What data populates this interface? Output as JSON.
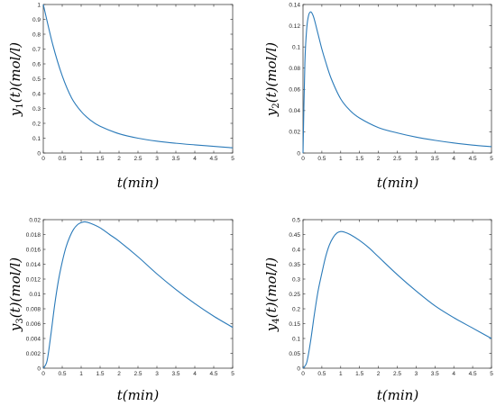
{
  "chart_data": [
    {
      "type": "line",
      "x": [
        0,
        0.25,
        0.5,
        0.75,
        1,
        1.25,
        1.5,
        2,
        2.5,
        3,
        3.5,
        4,
        4.5,
        5
      ],
      "series": [
        {
          "values": [
            1.0,
            0.73,
            0.52,
            0.37,
            0.28,
            0.22,
            0.18,
            0.13,
            0.1,
            0.08,
            0.066,
            0.055,
            0.045,
            0.035
          ]
        }
      ],
      "xlim": [
        0,
        5
      ],
      "ylim": [
        0,
        1
      ],
      "xticks": [
        "0",
        "0.5",
        "1",
        "1.5",
        "2",
        "2.5",
        "3",
        "3.5",
        "4",
        "4.5",
        "5"
      ],
      "yticks": [
        "0",
        "0.1",
        "0.2",
        "0.3",
        "0.4",
        "0.5",
        "0.6",
        "0.7",
        "0.8",
        "0.9",
        "1"
      ],
      "xlabel": "t(min)",
      "ylabel": "y1(t)(mol/l)",
      "xlabel_parts": {
        "main": "t(min)"
      },
      "ylabel_parts": {
        "base": "y",
        "sub": "1",
        "rest": "(t)(mol/l)"
      },
      "color": "#2a7ab9",
      "grid": false,
      "legend": "none"
    },
    {
      "type": "line",
      "x": [
        0,
        0.05,
        0.1,
        0.15,
        0.2,
        0.25,
        0.3,
        0.4,
        0.5,
        0.6,
        0.75,
        1,
        1.25,
        1.5,
        2,
        2.5,
        3,
        3.5,
        4,
        4.5,
        5
      ],
      "series": [
        {
          "values": [
            0,
            0.085,
            0.118,
            0.13,
            0.133,
            0.131,
            0.126,
            0.112,
            0.098,
            0.086,
            0.07,
            0.051,
            0.04,
            0.033,
            0.024,
            0.019,
            0.015,
            0.012,
            0.0095,
            0.0075,
            0.006
          ]
        }
      ],
      "xlim": [
        0,
        5
      ],
      "ylim": [
        0,
        0.14
      ],
      "xticks": [
        "0",
        "0.5",
        "1",
        "1.5",
        "2",
        "2.5",
        "3",
        "3.5",
        "4",
        "4.5",
        "5"
      ],
      "yticks": [
        "0",
        "0.02",
        "0.04",
        "0.06",
        "0.08",
        "0.1",
        "0.12",
        "0.14"
      ],
      "xlabel": "t(min)",
      "ylabel": "y2(t)(mol/l)",
      "xlabel_parts": {
        "main": "t(min)"
      },
      "ylabel_parts": {
        "base": "y",
        "sub": "2",
        "rest": "(t)(mol/l)"
      },
      "color": "#2a7ab9",
      "grid": false,
      "legend": "none"
    },
    {
      "type": "line",
      "x": [
        0,
        0.1,
        0.2,
        0.3,
        0.4,
        0.5,
        0.6,
        0.7,
        0.8,
        0.9,
        1,
        1.1,
        1.25,
        1.5,
        1.75,
        2,
        2.5,
        3,
        3.5,
        4,
        4.5,
        5
      ],
      "series": [
        {
          "values": [
            0,
            0.001,
            0.0045,
            0.0085,
            0.0118,
            0.0143,
            0.0163,
            0.0177,
            0.0187,
            0.0193,
            0.0196,
            0.0197,
            0.0195,
            0.0189,
            0.018,
            0.0171,
            0.015,
            0.0127,
            0.0106,
            0.0087,
            0.007,
            0.0055
          ]
        }
      ],
      "xlim": [
        0,
        5
      ],
      "ylim": [
        0,
        0.02
      ],
      "xticks": [
        "0",
        "0.5",
        "1",
        "1.5",
        "2",
        "2.5",
        "3",
        "3.5",
        "4",
        "4.5",
        "5"
      ],
      "yticks": [
        "0",
        "0.002",
        "0.004",
        "0.006",
        "0.008",
        "0.01",
        "0.012",
        "0.014",
        "0.016",
        "0.018",
        "0.02"
      ],
      "xlabel": "t(min)",
      "ylabel": "y3(t)(mol/l)",
      "xlabel_parts": {
        "main": "t(min)"
      },
      "ylabel_parts": {
        "base": "y",
        "sub": "3",
        "rest": "(t)(mol/l)"
      },
      "color": "#2a7ab9",
      "grid": false,
      "legend": "none"
    },
    {
      "type": "line",
      "x": [
        0,
        0.1,
        0.2,
        0.3,
        0.4,
        0.5,
        0.6,
        0.7,
        0.8,
        0.9,
        1,
        1.1,
        1.25,
        1.5,
        1.75,
        2,
        2.5,
        3,
        3.5,
        4,
        4.5,
        5
      ],
      "series": [
        {
          "values": [
            0,
            0.02,
            0.09,
            0.18,
            0.26,
            0.32,
            0.375,
            0.415,
            0.44,
            0.455,
            0.46,
            0.458,
            0.45,
            0.43,
            0.405,
            0.375,
            0.315,
            0.26,
            0.21,
            0.17,
            0.135,
            0.1
          ]
        }
      ],
      "xlim": [
        0,
        5
      ],
      "ylim": [
        0,
        0.5
      ],
      "xticks": [
        "0",
        "0.5",
        "1",
        "1.5",
        "2",
        "2.5",
        "3",
        "3.5",
        "4",
        "4.5",
        "5"
      ],
      "yticks": [
        "0",
        "0.05",
        "0.1",
        "0.15",
        "0.2",
        "0.25",
        "0.3",
        "0.35",
        "0.4",
        "0.45",
        "0.5"
      ],
      "xlabel": "t(min)",
      "ylabel": "y4(t)(mol/l)",
      "xlabel_parts": {
        "main": "t(min)"
      },
      "ylabel_parts": {
        "base": "y",
        "sub": "4",
        "rest": "(t)(mol/l)"
      },
      "color": "#2a7ab9",
      "grid": false,
      "legend": "none"
    }
  ]
}
